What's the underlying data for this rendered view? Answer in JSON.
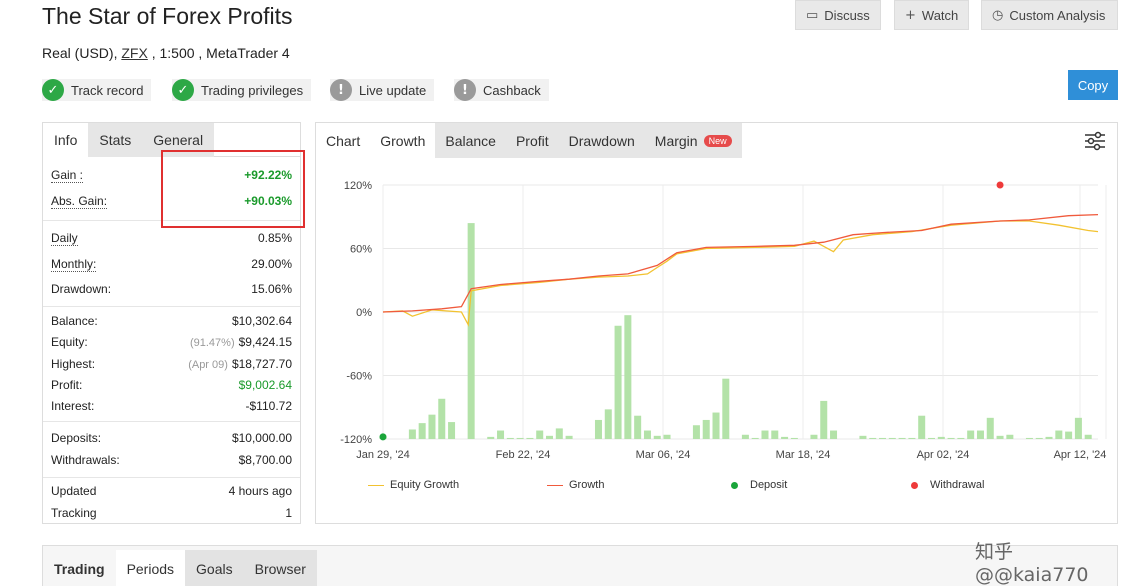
{
  "header": {
    "title": "The Star of Forex Profits",
    "account_type": "Real (USD),",
    "broker": "ZFX",
    "leverage_platform": ", 1:500 , MetaTrader 4"
  },
  "top_buttons": {
    "discuss": "Discuss",
    "watch": "Watch",
    "custom_analysis": "Custom Analysis",
    "copy": "Copy"
  },
  "badges": [
    {
      "label": "Track record",
      "status": "ok"
    },
    {
      "label": "Trading privileges",
      "status": "ok"
    },
    {
      "label": "Live update",
      "status": "warning"
    },
    {
      "label": "Cashback",
      "status": "warning"
    }
  ],
  "stats_tabs": [
    "Info",
    "Stats",
    "General"
  ],
  "stats": {
    "gain": {
      "label": "Gain :",
      "value": "+92.22%"
    },
    "abs_gain": {
      "label": "Abs. Gain:",
      "value": "+90.03%"
    },
    "daily": {
      "label": "Daily",
      "value": "0.85%"
    },
    "monthly": {
      "label": "Monthly:",
      "value": "29.00%"
    },
    "drawdown": {
      "label": "Drawdown:",
      "value": "15.06%"
    },
    "balance": {
      "label": "Balance:",
      "value": "$10,302.64"
    },
    "equity": {
      "label": "Equity:",
      "sub": "(91.47%)",
      "value": "$9,424.15"
    },
    "highest": {
      "label": "Highest:",
      "sub": "(Apr 09)",
      "value": "$18,727.70"
    },
    "profit": {
      "label": "Profit:",
      "value": "$9,002.64"
    },
    "interest": {
      "label": "Interest:",
      "value": "-$110.72"
    },
    "deposits": {
      "label": "Deposits:",
      "value": "$10,000.00"
    },
    "withdrawals": {
      "label": "Withdrawals:",
      "value": "$8,700.00"
    },
    "updated": {
      "label": "Updated",
      "value": "4 hours ago"
    },
    "tracking": {
      "label": "Tracking",
      "value": "1"
    }
  },
  "chart_tabs": [
    "Chart",
    "Growth",
    "Balance",
    "Profit",
    "Drawdown",
    "Margin"
  ],
  "chart_new_badge": "New",
  "legend": {
    "equity_growth": "Equity Growth",
    "growth": "Growth",
    "deposit": "Deposit",
    "withdrawal": "Withdrawal"
  },
  "bottom_tabs": [
    "Trading",
    "Periods",
    "Goals",
    "Browser"
  ],
  "watermark": "知乎 @@kaia770",
  "colors": {
    "growth": "#f05a3c",
    "equity_growth": "#f2c230",
    "bars": "#b3e2a8",
    "deposit": "#1aa53a",
    "withdrawal": "#ee3a3a",
    "copy_button": "#2f8fd8"
  },
  "chart_data": {
    "type": "line",
    "x_ticks": [
      "Jan 29, '24",
      "Feb 22, '24",
      "Mar 06, '24",
      "Mar 18, '24",
      "Apr 02, '24",
      "Apr 12, '24"
    ],
    "y_ticks": [
      "120%",
      "60%",
      "0%",
      "-60%",
      "-120%"
    ],
    "ylim": [
      -120,
      120
    ],
    "grid": true,
    "legend_position": "bottom",
    "series": [
      {
        "name": "Growth",
        "points": [
          [
            0,
            0
          ],
          [
            3,
            1
          ],
          [
            6,
            3
          ],
          [
            8,
            5
          ],
          [
            9,
            22
          ],
          [
            12,
            26
          ],
          [
            16,
            29
          ],
          [
            19,
            31
          ],
          [
            22,
            34
          ],
          [
            25,
            36
          ],
          [
            28,
            44
          ],
          [
            30,
            56
          ],
          [
            33,
            61
          ],
          [
            38,
            62
          ],
          [
            42,
            63
          ],
          [
            45,
            66
          ],
          [
            48,
            73
          ],
          [
            51,
            75
          ],
          [
            55,
            77
          ],
          [
            58,
            83
          ],
          [
            63,
            86
          ],
          [
            66,
            87
          ],
          [
            70,
            91
          ],
          [
            73,
            92
          ]
        ]
      },
      {
        "name": "Equity Growth",
        "points": [
          [
            0,
            0
          ],
          [
            2,
            1
          ],
          [
            3,
            -4
          ],
          [
            5,
            2
          ],
          [
            8,
            0
          ],
          [
            8.7,
            -12
          ],
          [
            9,
            20
          ],
          [
            12,
            25
          ],
          [
            16,
            28
          ],
          [
            19,
            31
          ],
          [
            22,
            33
          ],
          [
            25,
            34
          ],
          [
            27,
            36
          ],
          [
            28,
            42
          ],
          [
            29,
            48
          ],
          [
            30,
            55
          ],
          [
            33,
            60
          ],
          [
            38,
            61
          ],
          [
            42,
            62
          ],
          [
            44,
            67
          ],
          [
            46,
            57
          ],
          [
            47,
            68
          ],
          [
            50,
            73
          ],
          [
            54,
            76
          ],
          [
            58,
            82
          ],
          [
            63,
            86
          ],
          [
            66,
            86
          ],
          [
            69,
            82
          ],
          [
            72,
            77
          ],
          [
            73,
            76
          ]
        ]
      }
    ],
    "bars": [
      [
        0,
        -118
      ],
      [
        3,
        -111
      ],
      [
        4,
        -105
      ],
      [
        5,
        -97
      ],
      [
        6,
        -82
      ],
      [
        7,
        -104
      ],
      [
        9,
        84
      ],
      [
        11,
        -118
      ],
      [
        12,
        -112
      ],
      [
        13,
        -119
      ],
      [
        14,
        -119
      ],
      [
        15,
        -119
      ],
      [
        16,
        -112
      ],
      [
        17,
        -117
      ],
      [
        18,
        -110
      ],
      [
        19,
        -117
      ],
      [
        22,
        -102
      ],
      [
        23,
        -92
      ],
      [
        24,
        -13
      ],
      [
        25,
        -3
      ],
      [
        26,
        -98
      ],
      [
        27,
        -112
      ],
      [
        28,
        -117
      ],
      [
        29,
        -116
      ],
      [
        32,
        -107
      ],
      [
        33,
        -102
      ],
      [
        34,
        -95
      ],
      [
        35,
        -63
      ],
      [
        37,
        -116
      ],
      [
        38,
        -119
      ],
      [
        39,
        -112
      ],
      [
        40,
        -112
      ],
      [
        41,
        -118
      ],
      [
        42,
        -119
      ],
      [
        44,
        -116
      ],
      [
        45,
        -84
      ],
      [
        46,
        -112
      ],
      [
        49,
        -117
      ],
      [
        50,
        -119
      ],
      [
        51,
        -119
      ],
      [
        52,
        -119
      ],
      [
        53,
        -119
      ],
      [
        54,
        -119
      ],
      [
        55,
        -98
      ],
      [
        56,
        -119
      ],
      [
        57,
        -118
      ],
      [
        58,
        -119
      ],
      [
        59,
        -119
      ],
      [
        60,
        -112
      ],
      [
        61,
        -112
      ],
      [
        62,
        -100
      ],
      [
        63,
        -117
      ],
      [
        64,
        -116
      ],
      [
        66,
        -119
      ],
      [
        67,
        -119
      ],
      [
        68,
        -118
      ],
      [
        69,
        -112
      ],
      [
        70,
        -113
      ],
      [
        71,
        -100
      ],
      [
        72,
        -116
      ]
    ],
    "deposit_points": [
      [
        0,
        -118
      ]
    ],
    "withdrawal_points": [
      [
        63,
        120
      ]
    ]
  }
}
